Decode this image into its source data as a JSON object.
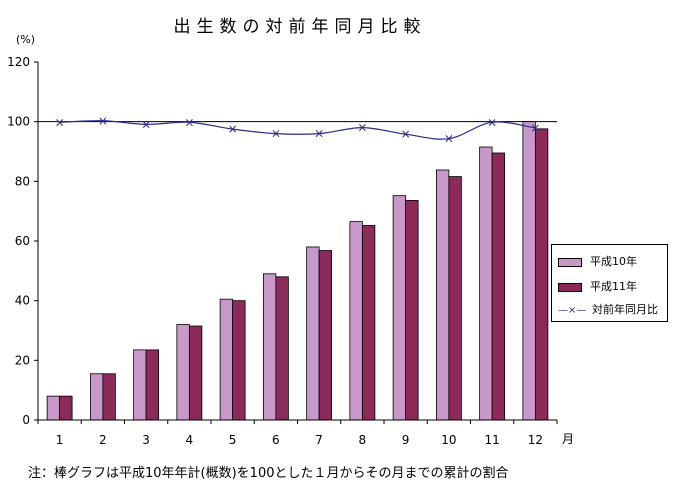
{
  "chart_data": {
    "type": "bar",
    "title": "出生数の対前年同月比較",
    "yunit": "(%)",
    "xunit": "月",
    "categories": [
      "1",
      "2",
      "3",
      "4",
      "5",
      "6",
      "7",
      "8",
      "9",
      "10",
      "11",
      "12"
    ],
    "ylim": [
      0,
      120
    ],
    "yticks": [
      0,
      20,
      40,
      60,
      80,
      100,
      120
    ],
    "reference_line": 100,
    "series": [
      {
        "name": "平成10年",
        "type": "bar",
        "color": "#c898c8",
        "values": [
          8.0,
          15.5,
          23.5,
          32.0,
          40.5,
          49.0,
          58.0,
          66.5,
          75.2,
          83.8,
          91.5,
          100.0
        ]
      },
      {
        "name": "平成11年",
        "type": "bar",
        "color": "#8c2a5a",
        "values": [
          8.0,
          15.5,
          23.5,
          31.5,
          40.0,
          48.0,
          56.8,
          65.2,
          73.6,
          81.6,
          89.5,
          97.6
        ]
      },
      {
        "name": "対前年同月比",
        "type": "line",
        "color": "#2a2a8c",
        "values": [
          99.8,
          100.3,
          99.1,
          99.8,
          97.5,
          96.0,
          96.0,
          98.0,
          95.8,
          94.3,
          99.8,
          97.9
        ]
      }
    ],
    "legend_position": "right",
    "footnote": "注：棒グラフは平成10年年計(概数)を100とした１月からその月までの累計の割合"
  }
}
